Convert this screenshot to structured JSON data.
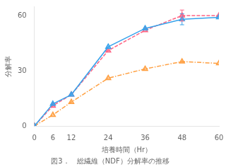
{
  "chart_data": {
    "type": "line",
    "title": "図3．　総繊維（NDF）分解率の推移",
    "xlabel": "培養時間（Hr）",
    "ylabel": "分解率",
    "x": [
      0,
      6,
      12,
      24,
      36,
      48,
      60
    ],
    "series": [
      {
        "values": [
          0,
          12,
          17,
          43,
          53,
          58,
          59
        ],
        "line_style": "solid",
        "marker": "triangle",
        "yerr": [
          null,
          null,
          null,
          null,
          null,
          3.0,
          null
        ]
      },
      {
        "values": [
          0,
          11,
          17,
          41,
          52,
          60,
          60
        ],
        "line_style": "dashed",
        "marker": "triangle",
        "yerr": [
          null,
          null,
          null,
          null,
          null,
          3.0,
          null
        ]
      },
      {
        "values": [
          0,
          6,
          13,
          26,
          31,
          35,
          34
        ],
        "line_style": "dashdot",
        "marker": "triangle"
      }
    ],
    "xlim": [
      0,
      60
    ],
    "ylim": [
      0,
      65
    ],
    "xticks": [
      0,
      6,
      12,
      24,
      36,
      48,
      60
    ],
    "yticks": [
      0,
      30,
      60
    ],
    "grid": false
  }
}
